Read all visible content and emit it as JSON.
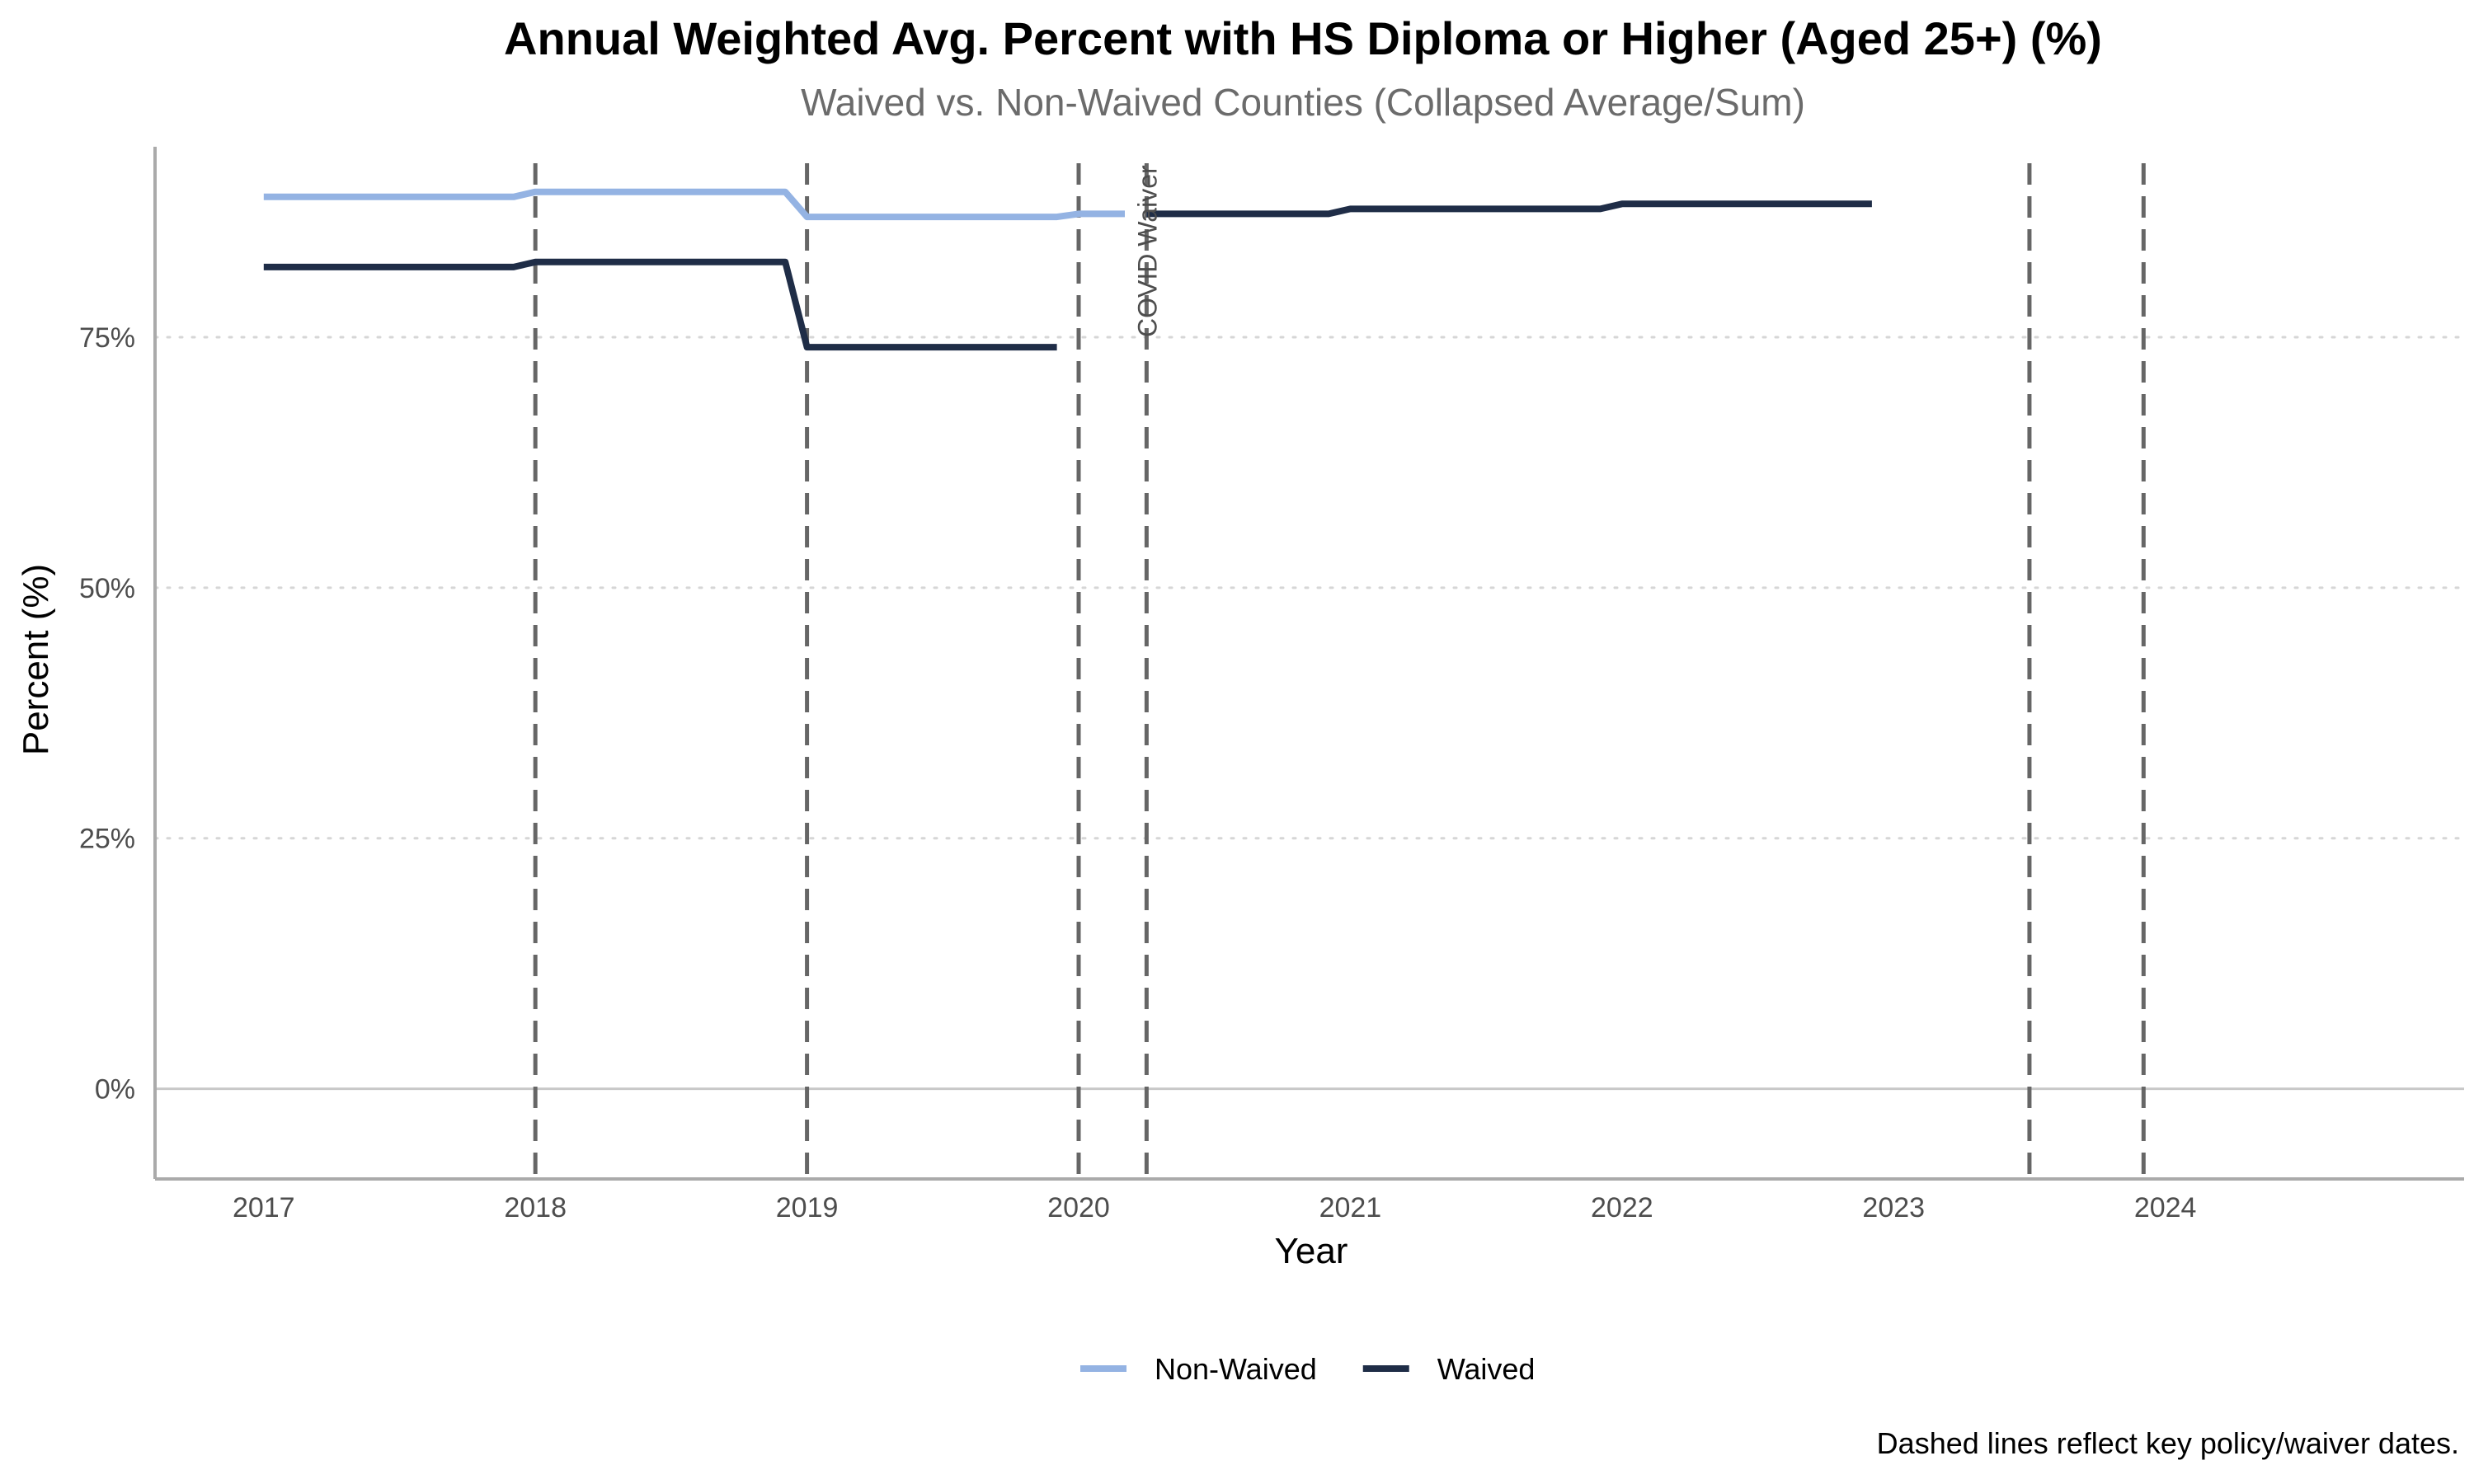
{
  "chart_data": {
    "type": "line",
    "title": "Annual Weighted Avg. Percent with HS Diploma or Higher (Aged 25+) (%)",
    "subtitle": "Waived vs. Non-Waived Counties (Collapsed Average/Sum)",
    "xlabel": "Year",
    "ylabel": "Percent (%)",
    "xlim": [
      2016.6,
      2025.1
    ],
    "ylim": [
      -9,
      94
    ],
    "x_ticks": [
      2017,
      2018,
      2019,
      2020,
      2021,
      2022,
      2023,
      2024
    ],
    "y_ticks": [
      {
        "value": 0,
        "label": "0%"
      },
      {
        "value": 25,
        "label": "25%"
      },
      {
        "value": 50,
        "label": "50%"
      },
      {
        "value": 75,
        "label": "75%"
      }
    ],
    "grid": "horizontal dotted",
    "legend_position": "bottom",
    "series": [
      {
        "name": "Non-Waived",
        "color": "#94b3e3",
        "segments": [
          {
            "x": [
              2017.0,
              2017.92,
              2018.0,
              2018.92,
              2019.0,
              2019.92,
              2020.0,
              2020.17
            ],
            "y": [
              89.0,
              89.0,
              89.5,
              89.5,
              87.0,
              87.0,
              87.3,
              87.3
            ]
          }
        ]
      },
      {
        "name": "Waived",
        "color": "#1f2d47",
        "segments": [
          {
            "x": [
              2017.0,
              2017.92,
              2018.0,
              2018.92,
              2019.0,
              2019.92
            ],
            "y": [
              82.0,
              82.0,
              82.5,
              82.5,
              74.0,
              74.0
            ]
          },
          {
            "x": [
              2020.25,
              2020.92,
              2021.0,
              2021.92,
              2022.0,
              2022.92
            ],
            "y": [
              87.3,
              87.3,
              87.8,
              87.8,
              88.3,
              88.3
            ]
          }
        ]
      }
    ],
    "reference_lines": {
      "x": [
        2018.0,
        2019.0,
        2020.0,
        2020.25,
        2023.5,
        2023.92
      ],
      "style": "dashed",
      "color": "#666666"
    },
    "annotations": [
      {
        "text": "COVID Waiver",
        "x": 2020.25,
        "y": 75,
        "rotation": -90
      }
    ],
    "caption": "Dashed lines reflect key policy/waiver dates."
  }
}
